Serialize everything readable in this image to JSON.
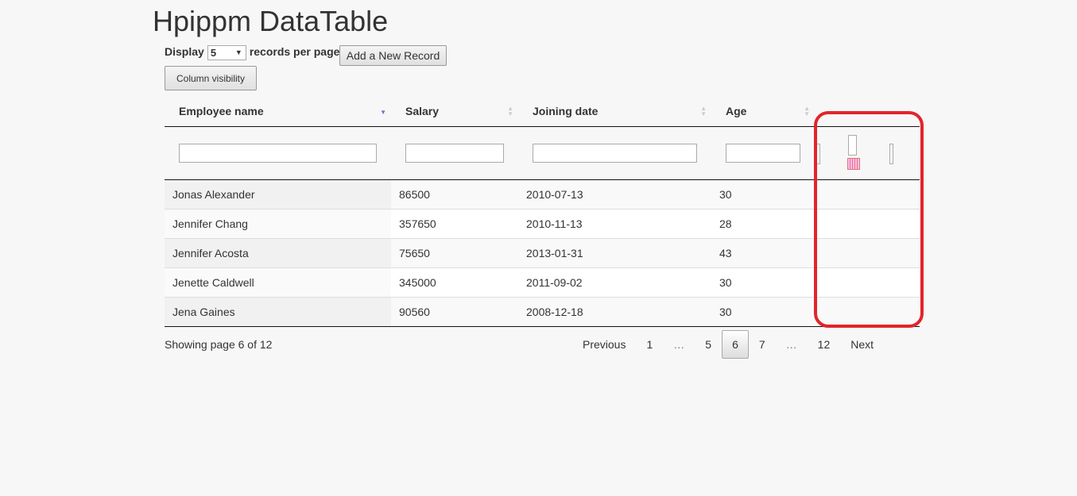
{
  "title": "Hpippm DataTable",
  "length": {
    "prefix": "Display",
    "value": "5",
    "suffix": "records per page"
  },
  "add_button": "Add a New Record",
  "colvis_button": "Column visibility",
  "columns": [
    "Employee name",
    "Salary",
    "Joining date",
    "Age"
  ],
  "rows": [
    [
      "Jonas Alexander",
      "86500",
      "2010-07-13",
      "30"
    ],
    [
      "Jennifer Chang",
      "357650",
      "2010-11-13",
      "28"
    ],
    [
      "Jennifer Acosta",
      "75650",
      "2013-01-31",
      "43"
    ],
    [
      "Jenette Caldwell",
      "345000",
      "2011-09-02",
      "30"
    ],
    [
      "Jena Gaines",
      "90560",
      "2008-12-18",
      "30"
    ]
  ],
  "info": "Showing page 6 of 12",
  "pager": {
    "previous": "Previous",
    "pages": [
      "1",
      "…",
      "5",
      "6",
      "7",
      "…",
      "12"
    ],
    "current": "6",
    "next": "Next"
  },
  "highlight_color": "#e3242b",
  "icons": {
    "calendar": "calendar-icon"
  }
}
